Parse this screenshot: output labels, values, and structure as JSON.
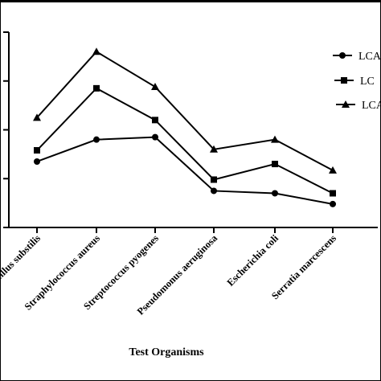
{
  "chart_data": {
    "type": "line",
    "xlabel": "Test Organisms",
    "categories": [
      "Bacillus substilis",
      "Straphylococcus aureus",
      "Streptococcus pyogenes",
      "Pseudomonus aeruginosa",
      "Escherichia coli",
      "Serratia marcescens"
    ],
    "series": [
      {
        "name": "LCA",
        "marker": "circle",
        "values": [
          13.5,
          18.0,
          18.5,
          7.5,
          7.0,
          4.8
        ]
      },
      {
        "name": "LC",
        "marker": "square",
        "values": [
          15.8,
          28.5,
          22.0,
          9.8,
          13.0,
          7.0
        ]
      },
      {
        "name": "LCA",
        "marker": "triangle",
        "values": [
          22.5,
          36.0,
          28.8,
          16.0,
          18.0,
          11.7
        ]
      }
    ],
    "ylim": [
      0,
      40
    ],
    "yticks": [
      0,
      10,
      20,
      30,
      40
    ],
    "grid": false,
    "legend_position": "top-right",
    "colors": {
      "series": "#000000",
      "background": "#ffffff"
    }
  }
}
